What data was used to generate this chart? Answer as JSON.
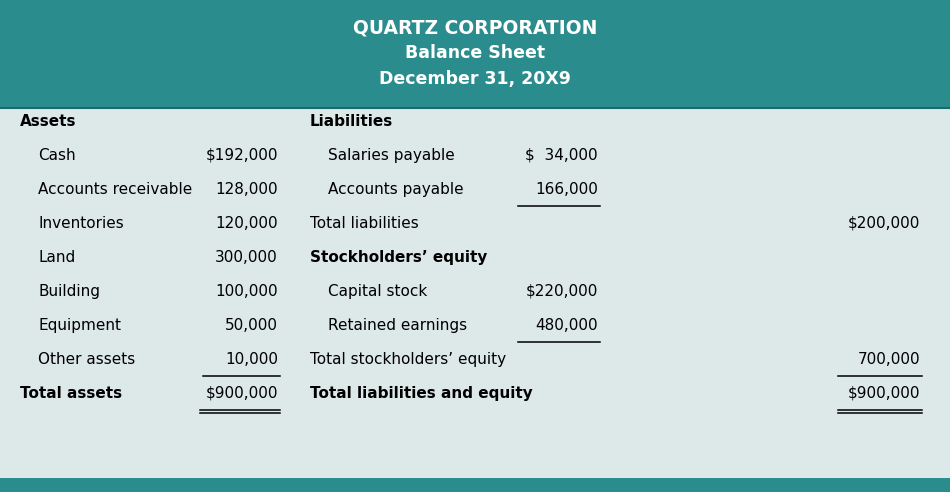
{
  "title_line1": "QUARTZ CORPORATION",
  "title_line2": "Balance Sheet",
  "title_line3": "December 31, 20X9",
  "header_bg": "#2a8c8c",
  "header_text_color": "#ffffff",
  "body_bg": "#dde8e8",
  "bottom_bar_color": "#2a8c8c",
  "assets_header": "Assets",
  "liabilities_header": "Liabilities",
  "assets": [
    {
      "label": "Cash",
      "value": "$192,000",
      "underline": false,
      "bold": false
    },
    {
      "label": "Accounts receivable",
      "value": "128,000",
      "underline": false,
      "bold": false
    },
    {
      "label": "Inventories",
      "value": "120,000",
      "underline": false,
      "bold": false
    },
    {
      "label": "Land",
      "value": "300,000",
      "underline": false,
      "bold": false
    },
    {
      "label": "Building",
      "value": "100,000",
      "underline": false,
      "bold": false
    },
    {
      "label": "Equipment",
      "value": "50,000",
      "underline": false,
      "bold": false
    },
    {
      "label": "Other assets",
      "value": "10,000",
      "underline": true,
      "bold": false
    }
  ],
  "total_assets_label": "Total assets",
  "total_assets_value": "$900,000",
  "liabilities_items": [
    {
      "label": "Salaries payable",
      "value": "$  34,000",
      "underline": false,
      "bold": false
    },
    {
      "label": "Accounts payable",
      "value": "166,000",
      "underline": true,
      "bold": false
    }
  ],
  "total_liabilities_label": "Total liabilities",
  "total_liabilities_value": "$200,000",
  "equity_header": "Stockholders’ equity",
  "equity_items": [
    {
      "label": "Capital stock",
      "value": "$220,000",
      "underline": false,
      "bold": false
    },
    {
      "label": "Retained earnings",
      "value": "480,000",
      "underline": true,
      "bold": false
    }
  ],
  "total_equity_label": "Total stockholders’ equity",
  "total_equity_value": "700,000",
  "total_le_label": "Total liabilities and equity",
  "total_le_value": "$900,000"
}
